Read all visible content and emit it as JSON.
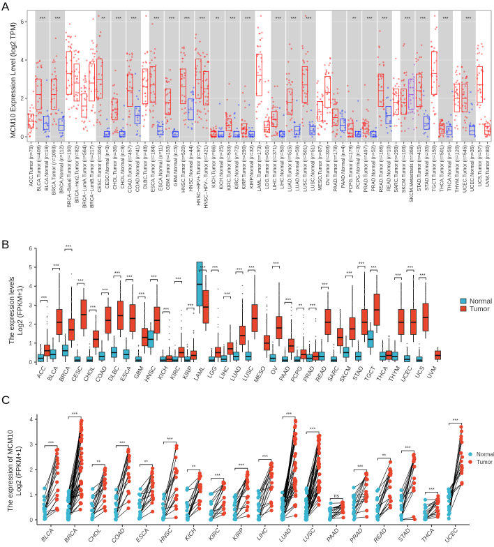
{
  "panels": {
    "a": "A",
    "b": "B",
    "c": "C"
  },
  "chart_data": [
    {
      "type": "box",
      "panel": "A",
      "ylabel": "MCM10 Expression Level (log2 TPM)",
      "ylim": [
        0,
        6.5
      ],
      "yticks": [
        "0",
        "2",
        "4",
        "6"
      ],
      "grid": true,
      "colors": {
        "Tumor": "#ff2020",
        "Normal": "#2a3cff",
        "Metastasis": "#a050e0",
        "shade": "#d3d3d3"
      },
      "groups": [
        {
          "sig": "",
          "shaded": false,
          "cols": [
            [
              "ACC.Tumor (n=79)",
              "Tumor",
              0.8
            ]
          ]
        },
        {
          "sig": "***",
          "shaded": true,
          "cols": [
            [
              "BLCA.Tumor (n=408)",
              "Tumor",
              2.2
            ],
            [
              "BLCA.Normal (n=19)",
              "Normal",
              0.7
            ]
          ]
        },
        {
          "sig": "***",
          "shaded": true,
          "cols": [
            [
              "BRCA.Tumor (n=1093)",
              "Tumor",
              2.2
            ],
            [
              "BRCA.Normal (n=112)",
              "Normal",
              0.6
            ]
          ]
        },
        {
          "sig": "",
          "shaded": false,
          "cols": [
            [
              "BRCA−Basal.Tumor (n=190)",
              "Tumor",
              3.3
            ],
            [
              "BRCA−Her2.Tumor (n=82)",
              "Tumor",
              2.8
            ],
            [
              "BRCA−LumA.Tumor (n=564)",
              "Tumor",
              1.6
            ],
            [
              "BRCA−LumB.Tumor (n=217)",
              "Tumor",
              2.8
            ]
          ]
        },
        {
          "sig": "**",
          "shaded": true,
          "cols": [
            [
              "CESC.Tumor (n=304)",
              "Tumor",
              3.0
            ],
            [
              "CESC.Normal (n=3)",
              "Normal",
              0.1
            ]
          ]
        },
        {
          "sig": "***",
          "shaded": true,
          "cols": [
            [
              "CHOL.Tumor (n=36)",
              "Tumor",
              1.4
            ],
            [
              "CHOL.Normal (n=9)",
              "Normal",
              0.1
            ]
          ]
        },
        {
          "sig": "***",
          "shaded": true,
          "cols": [
            [
              "COAD.Tumor (n=457)",
              "Tumor",
              2.4
            ],
            [
              "COAD.Normal (n=41)",
              "Normal",
              1.1
            ]
          ]
        },
        {
          "sig": "",
          "shaded": false,
          "cols": [
            [
              "DLBC.Tumor (n=48)",
              "Tumor",
              2.6
            ]
          ]
        },
        {
          "sig": "***",
          "shaded": true,
          "cols": [
            [
              "ESCA.Tumor (n=184)",
              "Tumor",
              2.7
            ],
            [
              "ESCA.Normal (n=11)",
              "Normal",
              0.3
            ]
          ]
        },
        {
          "sig": "***",
          "shaded": true,
          "cols": [
            [
              "GBM.Tumor (n=153)",
              "Tumor",
              1.8
            ],
            [
              "GBM.Normal (n=5)",
              "Normal",
              0.1
            ]
          ]
        },
        {
          "sig": "***",
          "shaded": true,
          "cols": [
            [
              "HNSC.Tumor (n=520)",
              "Tumor",
              2.6
            ],
            [
              "HNSC.Normal (n=44)",
              "Normal",
              1.4
            ]
          ]
        },
        {
          "sig": "***",
          "shaded": true,
          "cols": [
            [
              "HNSC−HPV+.Tumor (n=97)",
              "Tumor",
              3.0
            ],
            [
              "HNSC−HPV−.Tumor (n=421)",
              "Tumor",
              2.5
            ]
          ]
        },
        {
          "sig": "**",
          "shaded": true,
          "cols": [
            [
              "KICH.Tumor (n=66)",
              "Tumor",
              0.1
            ],
            [
              "KICH.Normal (n=25)",
              "Normal",
              0.1
            ]
          ]
        },
        {
          "sig": "***",
          "shaded": true,
          "cols": [
            [
              "KIRC.Tumor (n=533)",
              "Tumor",
              0.6
            ],
            [
              "KIRC.Normal (n=72)",
              "Normal",
              0.1
            ]
          ]
        },
        {
          "sig": "***",
          "shaded": true,
          "cols": [
            [
              "KIRP.Tumor (n=290)",
              "Tumor",
              0.4
            ],
            [
              "KIRP.Normal (n=32)",
              "Normal",
              0.1
            ]
          ]
        },
        {
          "sig": "",
          "shaded": false,
          "cols": [
            [
              "LAML.Tumor (n=173)",
              "Tumor",
              3.2
            ]
          ]
        },
        {
          "sig": "",
          "shaded": false,
          "cols": [
            [
              "LGG.Tumor (n=516)",
              "Tumor",
              0.5
            ]
          ]
        },
        {
          "sig": "***",
          "shaded": true,
          "cols": [
            [
              "LIHC.Tumor (n=371)",
              "Tumor",
              0.9
            ],
            [
              "LIHC.Normal (n=50)",
              "Normal",
              0.1
            ]
          ]
        },
        {
          "sig": "***",
          "shaded": true,
          "cols": [
            [
              "LUAD.Tumor (n=515)",
              "Tumor",
              1.8
            ],
            [
              "LUAD.Normal (n=59)",
              "Normal",
              0.3
            ]
          ]
        },
        {
          "sig": "***",
          "shaded": true,
          "cols": [
            [
              "LUSC.Tumor (n=501)",
              "Tumor",
              2.7
            ],
            [
              "LUSC.Normal (n=51)",
              "Normal",
              0.3
            ]
          ]
        },
        {
          "sig": "",
          "shaded": false,
          "cols": [
            [
              "MESO.Tumor (n=87)",
              "Tumor",
              1.3
            ]
          ]
        },
        {
          "sig": "",
          "shaded": false,
          "cols": [
            [
              "OV.Tumor (n=303)",
              "Tumor",
              2.3
            ]
          ]
        },
        {
          "sig": "",
          "shaded": true,
          "cols": [
            [
              "PAAD.Tumor (n=178)",
              "Tumor",
              1.0
            ],
            [
              "PAAD.Normal (n=4)",
              "Normal",
              0.6
            ]
          ]
        },
        {
          "sig": "**",
          "shaded": true,
          "cols": [
            [
              "PCPG.Tumor (n=179)",
              "Tumor",
              0.4
            ],
            [
              "PCPG.Normal (n=3)",
              "Normal",
              0.1
            ]
          ]
        },
        {
          "sig": "***",
          "shaded": true,
          "cols": [
            [
              "PRAD.Tumor (n=497)",
              "Tumor",
              0.4
            ],
            [
              "PRAD.Normal (n=52)",
              "Normal",
              0.1
            ]
          ]
        },
        {
          "sig": "***",
          "shaded": true,
          "cols": [
            [
              "READ.Tumor (n=166)",
              "Tumor",
              2.4
            ],
            [
              "READ.Normal (n=10)",
              "Normal",
              1.1
            ]
          ]
        },
        {
          "sig": "",
          "shaded": false,
          "cols": [
            [
              "SARC.Tumor (n=259)",
              "Tumor",
              1.8
            ]
          ]
        },
        {
          "sig": "***",
          "shaded": true,
          "cols": [
            [
              "SKCM.Tumor (n=103)",
              "Tumor",
              1.8
            ],
            [
              "SKCM.Metastasis (n=368)",
              "Metastasis",
              2.2
            ]
          ]
        },
        {
          "sig": "***",
          "shaded": true,
          "cols": [
            [
              "STAD.Tumor (n=415)",
              "Tumor",
              2.4
            ],
            [
              "STAD.Normal (n=35)",
              "Normal",
              0.7
            ]
          ]
        },
        {
          "sig": "",
          "shaded": false,
          "cols": [
            [
              "TGCT.Tumor (n=150)",
              "Tumor",
              3.3
            ]
          ]
        },
        {
          "sig": "***",
          "shaded": true,
          "cols": [
            [
              "THCA.Tumor (n=501)",
              "Tumor",
              0.4
            ],
            [
              "THCA.Normal (n=59)",
              "Normal",
              0.3
            ]
          ]
        },
        {
          "sig": "",
          "shaded": false,
          "cols": [
            [
              "THYM.Tumor (n=120)",
              "Tumor",
              2.0
            ]
          ]
        },
        {
          "sig": "***",
          "shaded": true,
          "cols": [
            [
              "UCEC.Tumor (n=545)",
              "Tumor",
              2.0
            ],
            [
              "UCEC.Normal (n=35)",
              "Normal",
              0.3
            ]
          ]
        },
        {
          "sig": "",
          "shaded": false,
          "cols": [
            [
              "UCS.Tumor (n=57)",
              "Tumor",
              2.7
            ]
          ]
        },
        {
          "sig": "",
          "shaded": false,
          "cols": [
            [
              "UVM.Tumor (n=80)",
              "Tumor",
              0.3
            ]
          ]
        }
      ]
    },
    {
      "type": "box",
      "panel": "B",
      "ylabel_line1": "The expression levels",
      "ylabel_line2": "Log2 (FPKM+1)",
      "ylim": [
        0,
        6
      ],
      "yticks": [
        "0",
        "1",
        "2",
        "3",
        "4",
        "5",
        "6"
      ],
      "legend": {
        "position": "right",
        "items": [
          "Normal",
          "Tumor"
        ]
      },
      "colors": {
        "Normal": "#3bb4cf",
        "Tumor": "#e8452c"
      },
      "fields": [
        "category",
        "normal_median",
        "tumor_median",
        "tumor_max",
        "sig"
      ],
      "groups": [
        [
          "ACC",
          0.2,
          0.6,
          3.0,
          "***"
        ],
        [
          "BLCA",
          0.4,
          2.1,
          4.7,
          "***"
        ],
        [
          "BRCA",
          0.6,
          1.7,
          5.7,
          "***"
        ],
        [
          "CESC",
          0.1,
          2.5,
          3.9,
          "***"
        ],
        [
          "CHOL",
          0.1,
          1.2,
          2.5,
          "***"
        ],
        [
          "COAD",
          0.3,
          2.2,
          3.4,
          "***"
        ],
        [
          "DLBC",
          0.5,
          2.45,
          4.3,
          "***"
        ],
        [
          "ESCA",
          0.4,
          2.3,
          4.1,
          "***"
        ],
        [
          "GBM",
          0.1,
          1.3,
          3.2,
          "***"
        ],
        [
          "HNSC",
          1.2,
          2.2,
          4.1,
          "***"
        ],
        [
          "KICH",
          0.1,
          0.15,
          2.4,
          "***"
        ],
        [
          "KIRC",
          0.1,
          0.5,
          4.0,
          "***"
        ],
        [
          "KIRP",
          0.1,
          0.35,
          2.6,
          "***"
        ],
        [
          "LAML",
          4.1,
          2.9,
          4.6,
          "***"
        ],
        [
          "LGG",
          0.1,
          0.5,
          4.6,
          "***"
        ],
        [
          "LIHC",
          0.15,
          0.7,
          3.2,
          "***"
        ],
        [
          "LUAD",
          0.3,
          1.4,
          4.5,
          "***"
        ],
        [
          "LUSC",
          0.3,
          2.3,
          4.6,
          "***"
        ],
        [
          "MESO",
          null,
          1.0,
          3.6,
          ""
        ],
        [
          "OV",
          0.2,
          1.8,
          4.8,
          "***"
        ],
        [
          "PAAD",
          0.1,
          0.85,
          2.9,
          "***"
        ],
        [
          "PCPG",
          0.1,
          0.4,
          2.6,
          "**"
        ],
        [
          "PRAD",
          0.2,
          0.3,
          2.6,
          "***"
        ],
        [
          "READ",
          0.3,
          2.1,
          3.7,
          "***"
        ],
        [
          "SARC",
          0.1,
          1.3,
          2.8,
          ""
        ],
        [
          "SKCM",
          0.5,
          1.75,
          4.3,
          "***"
        ],
        [
          "STAD",
          0.3,
          2.1,
          4.8,
          "***"
        ],
        [
          "TGCT",
          1.2,
          2.75,
          4.6,
          "***"
        ],
        [
          "THCA",
          0.3,
          0.35,
          1.5,
          ""
        ],
        [
          "THYM",
          0.3,
          2.1,
          4.2,
          "***"
        ],
        [
          "UCEC",
          0.15,
          2.1,
          4.6,
          "***"
        ],
        [
          "UCS",
          0.1,
          2.35,
          4.2,
          "***"
        ],
        [
          "UVM",
          null,
          0.35,
          0.8,
          ""
        ]
      ]
    },
    {
      "type": "paired-scatter",
      "panel": "C",
      "ylabel_line1": "The expression of MCM10",
      "ylabel_line2": "Log2 (FPKM+1)",
      "ylim": [
        0,
        4
      ],
      "yticks": [
        "0",
        "1",
        "2",
        "3",
        "4"
      ],
      "legend": {
        "position": "right",
        "items": [
          "Normal",
          "Tumor"
        ]
      },
      "colors": {
        "Normal": "#3bb4cf",
        "Tumor": "#e8452c"
      },
      "fields": [
        "category",
        "tumor_max",
        "sig"
      ],
      "groups": [
        [
          "BLCA",
          2.8,
          "***"
        ],
        [
          "BRCA",
          3.95,
          "***"
        ],
        [
          "CHOL",
          2.05,
          "**"
        ],
        [
          "COAD",
          2.8,
          "***"
        ],
        [
          "ESCA",
          2.05,
          "**"
        ],
        [
          "HNSC",
          2.95,
          "***"
        ],
        [
          "KICH",
          1.85,
          "**"
        ],
        [
          "KIRC",
          1.5,
          "***"
        ],
        [
          "KIRP",
          1.9,
          "***"
        ],
        [
          "LIHC",
          2.25,
          "***"
        ],
        [
          "LUAD",
          3.95,
          "***"
        ],
        [
          "LUSC",
          3.35,
          "***"
        ],
        [
          "PAAD",
          0.7,
          "ns"
        ],
        [
          "PRAD",
          1.85,
          "***"
        ],
        [
          "READ",
          2.3,
          "**"
        ],
        [
          "STAD",
          2.6,
          "***"
        ],
        [
          "THCA",
          0.95,
          "***"
        ],
        [
          "UCEC",
          3.7,
          "***"
        ]
      ]
    }
  ]
}
